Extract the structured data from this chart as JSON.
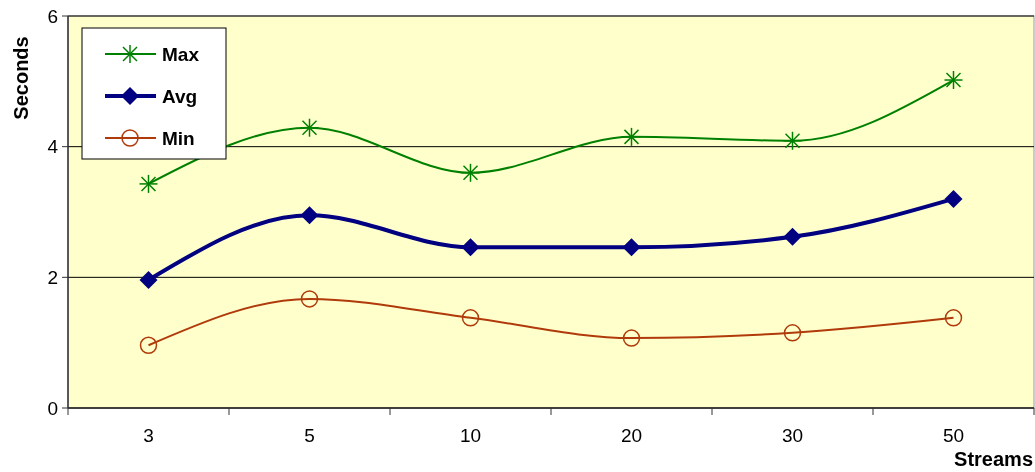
{
  "chart_data": {
    "type": "line",
    "xlabel": "Streams",
    "ylabel": "Seconds",
    "categories": [
      "3",
      "5",
      "10",
      "20",
      "30",
      "50"
    ],
    "ylim": [
      0,
      6
    ],
    "yticks": [
      0,
      2,
      4,
      6
    ],
    "grid": "y",
    "legend": "top left",
    "series": [
      {
        "name": "Max",
        "color": "#008000",
        "marker": "cross",
        "values": [
          3.43,
          4.29,
          3.6,
          4.15,
          4.09,
          5.02
        ]
      },
      {
        "name": "Avg",
        "color": "#000080",
        "marker": "diamond",
        "values": [
          1.96,
          2.95,
          2.46,
          2.46,
          2.62,
          3.2
        ]
      },
      {
        "name": "Min",
        "color": "#b03a0a",
        "marker": "circle",
        "values": [
          0.96,
          1.67,
          1.38,
          1.07,
          1.15,
          1.38
        ]
      }
    ]
  }
}
